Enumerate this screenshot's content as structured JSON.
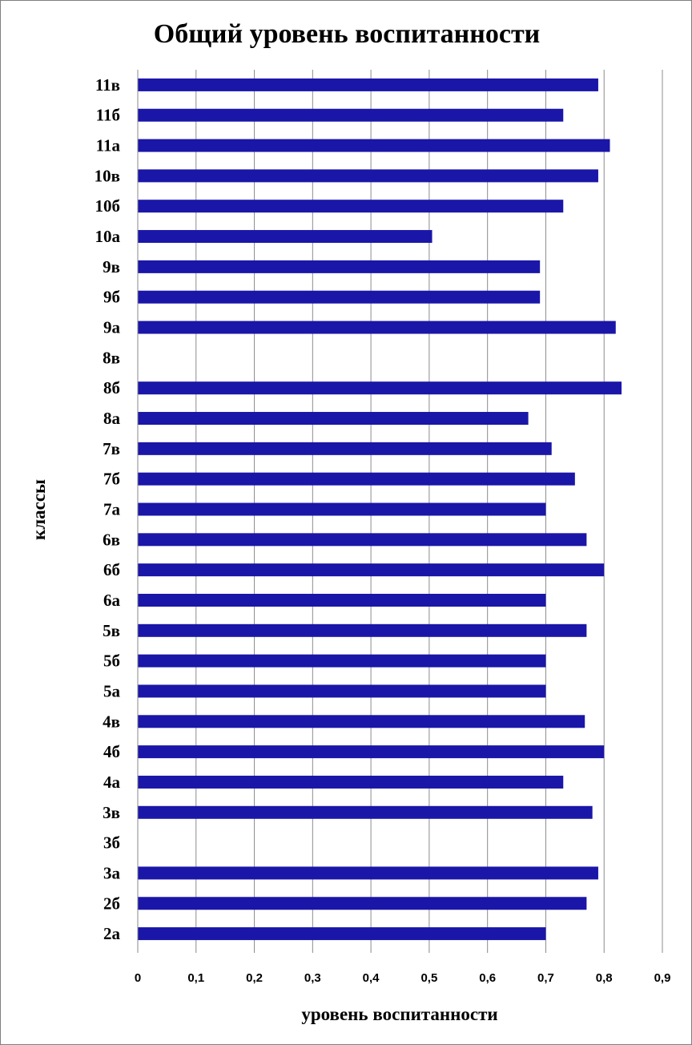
{
  "chart_data": {
    "type": "bar",
    "orientation": "horizontal",
    "title": "Общий уровень воспитанности",
    "xlabel": "уровень воспитанности",
    "ylabel": "классы",
    "categories": [
      "2а",
      "2б",
      "3а",
      "3б",
      "3в",
      "4а",
      "4б",
      "4в",
      "5а",
      "5б",
      "5в",
      "6а",
      "6б",
      "6в",
      "7а",
      "7б",
      "7в",
      "8а",
      "8б",
      "8в",
      "9а",
      "9б",
      "9в",
      "10а",
      "10б",
      "10в",
      "11а",
      "11б",
      "11в"
    ],
    "values": [
      0.7,
      0.77,
      0.79,
      null,
      0.78,
      0.73,
      0.8,
      0.767,
      0.7,
      0.7,
      0.77,
      0.7,
      0.8,
      0.77,
      0.7,
      0.75,
      0.71,
      0.67,
      0.83,
      null,
      0.82,
      0.69,
      0.69,
      0.505,
      0.73,
      0.79,
      0.81,
      0.73,
      0.79
    ],
    "xlim": [
      0,
      0.9
    ],
    "x_ticks": [
      "0",
      "0,1",
      "0,2",
      "0,3",
      "0,4",
      "0,5",
      "0,6",
      "0,7",
      "0,8",
      "0,9"
    ],
    "grid": "vertical",
    "legend": "none",
    "bar_color": "#1a16a8"
  }
}
